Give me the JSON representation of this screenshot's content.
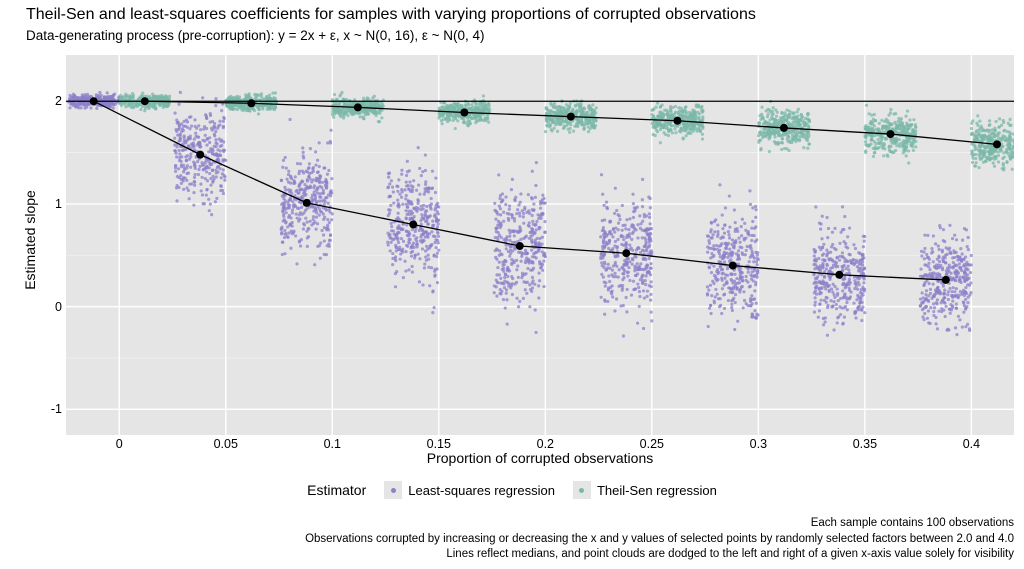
{
  "title": "Theil-Sen and least-squares coefficients for samples with varying proportions of corrupted observations",
  "subtitle": "Data-generating process (pre-corruption): y = 2x + ε, x ~ N(0, 16), ε ~ N(0, 4)",
  "xlabel": "Proportion of corrupted observations",
  "ylabel": "Estimated slope",
  "legend_title": "Estimator",
  "legend_items": [
    {
      "label": "Least-squares regression",
      "color": "#8b80c9"
    },
    {
      "label": "Theil-Sen regression",
      "color": "#7bb8a8"
    }
  ],
  "captions": [
    "Each sample contains 100 observations",
    "Observations corrupted by increasing or decreasing the x and y values of selected points by randomly selected factors between 2.0 and 4.0",
    "Lines reflect medians, and point clouds are dodged to the left and right of a given x-axis value solely for visibility"
  ],
  "chart": {
    "type": "jittered-scatter-with-medians",
    "panel_bg": "#e5e5e5",
    "grid_major_color": "#ffffff",
    "grid_minor_color": "#f2f2f2",
    "median_line_color": "#000000",
    "median_line_width": 1.3,
    "median_point_radius": 4,
    "median_point_color": "#000000",
    "point_radius": 1.6,
    "point_opacity": 0.75,
    "jitter_width": 0.012,
    "dodge": 0.012,
    "ref_line_y": 2.0,
    "ref_line_color": "#000000",
    "ref_line_width": 1.2,
    "xlim": [
      -0.025,
      0.42
    ],
    "ylim": [
      -1.25,
      2.45
    ],
    "x_ticks_major": [
      0,
      0.05,
      0.1,
      0.15,
      0.2,
      0.25,
      0.3,
      0.35,
      0.4
    ],
    "x_tick_labels": [
      "0",
      "0.05",
      "0.1",
      "0.15",
      "0.2",
      "0.25",
      "0.3",
      "0.35",
      "0.4"
    ],
    "y_ticks_major": [
      -1,
      0,
      1,
      2
    ],
    "y_ticks_minor": [
      -0.5,
      0.5,
      1.5
    ],
    "title_fontsize": 16,
    "subtitle_fontsize": 13.5,
    "axis_label_fontsize": 14,
    "tick_label_fontsize": 12.5,
    "caption_fontsize": 11.5,
    "font_family": "Arial",
    "x_positions": [
      0,
      0.05,
      0.1,
      0.15,
      0.2,
      0.25,
      0.3,
      0.35,
      0.4
    ],
    "series": {
      "least_squares": {
        "color": "#8b80c9",
        "medians": [
          2.0,
          1.48,
          1.01,
          0.8,
          0.59,
          0.52,
          0.4,
          0.31,
          0.26
        ],
        "spreads": [
          {
            "lo": 1.85,
            "hi": 2.15,
            "n": 260
          },
          {
            "lo": 0.4,
            "hi": 2.1,
            "n": 320
          },
          {
            "lo": -0.1,
            "hi": 2.05,
            "n": 340
          },
          {
            "lo": -0.45,
            "hi": 1.95,
            "n": 350
          },
          {
            "lo": -0.6,
            "hi": 1.85,
            "n": 350
          },
          {
            "lo": -0.5,
            "hi": 1.7,
            "n": 350
          },
          {
            "lo": -0.55,
            "hi": 1.6,
            "n": 350
          },
          {
            "lo": -0.55,
            "hi": 1.4,
            "n": 350
          },
          {
            "lo": -0.6,
            "hi": 1.3,
            "n": 350
          }
        ]
      },
      "theil_sen": {
        "color": "#7bb8a8",
        "medians": [
          2.0,
          1.98,
          1.94,
          1.89,
          1.85,
          1.81,
          1.74,
          1.68,
          1.58
        ],
        "spreads": [
          {
            "lo": 1.85,
            "hi": 2.15,
            "n": 260
          },
          {
            "lo": 1.8,
            "hi": 2.12,
            "n": 300
          },
          {
            "lo": 1.72,
            "hi": 2.1,
            "n": 310
          },
          {
            "lo": 1.65,
            "hi": 2.08,
            "n": 320
          },
          {
            "lo": 1.55,
            "hi": 2.08,
            "n": 330
          },
          {
            "lo": 1.5,
            "hi": 2.05,
            "n": 330
          },
          {
            "lo": 1.35,
            "hi": 2.0,
            "n": 340
          },
          {
            "lo": 1.25,
            "hi": 1.98,
            "n": 340
          },
          {
            "lo": 1.05,
            "hi": 1.95,
            "n": 350
          }
        ]
      }
    }
  }
}
